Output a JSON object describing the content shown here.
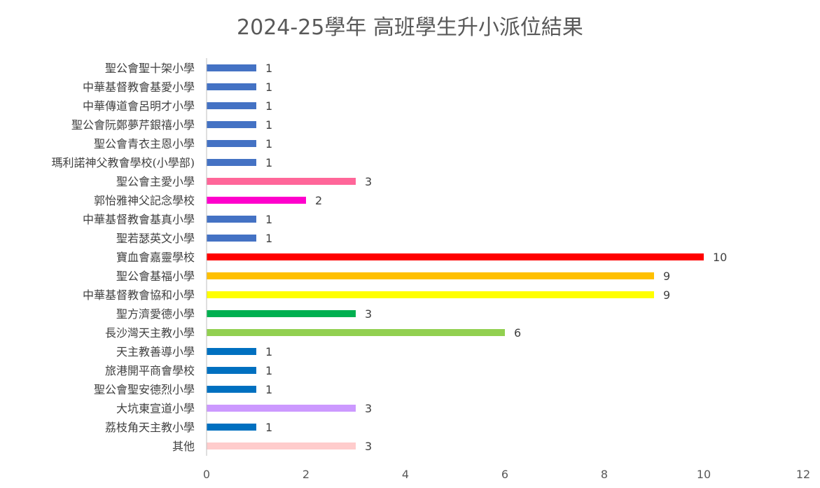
{
  "chart_data": {
    "type": "bar",
    "orientation": "horizontal",
    "title": "2024-25學年 高班學生升小派位結果",
    "xlabel": "",
    "ylabel": "",
    "xlim": [
      0,
      12
    ],
    "x_ticks": [
      "0",
      "2",
      "4",
      "6",
      "8",
      "10",
      "12"
    ],
    "grid": false,
    "legend": "none",
    "categories": [
      "聖公會聖十架小學",
      "中華基督教會基愛小學",
      "中華傳道會呂明才小學",
      "聖公會阮鄭夢芹銀禧小學",
      "聖公會青衣主恩小學",
      "瑪利諾神父教會學校(小學部)",
      "聖公會主愛小學",
      "郭怡雅神父記念學校",
      "中華基督教會基真小學",
      "聖若瑟英文小學",
      "寶血會嘉靈學校",
      "聖公會基福小學",
      "中華基督教會協和小學",
      "聖方濟愛德小學",
      "長沙灣天主教小學",
      "天主教善導小學",
      "旅港開平商會學校",
      "聖公會聖安德烈小學",
      "大坑東宣道小學",
      "荔枝角天主教小學",
      "其他"
    ],
    "values": [
      1,
      1,
      1,
      1,
      1,
      1,
      3,
      2,
      1,
      1,
      10,
      9,
      9,
      3,
      6,
      1,
      1,
      1,
      3,
      1,
      3
    ],
    "value_labels": [
      "1",
      "1",
      "1",
      "1",
      "1",
      "1",
      "3",
      "2",
      "1",
      "1",
      "10",
      "9",
      "9",
      "3",
      "6",
      "1",
      "1",
      "1",
      "3",
      "1",
      "3"
    ],
    "colors": [
      "#4472C4",
      "#4472C4",
      "#4472C4",
      "#4472C4",
      "#4472C4",
      "#4472C4",
      "#FF6699",
      "#FF00CC",
      "#4472C4",
      "#4472C4",
      "#FF0000",
      "#FFC000",
      "#FFFF00",
      "#00B050",
      "#92D050",
      "#0070C0",
      "#0070C0",
      "#0070C0",
      "#CC99FF",
      "#0070C0",
      "#FFCCCC"
    ]
  }
}
